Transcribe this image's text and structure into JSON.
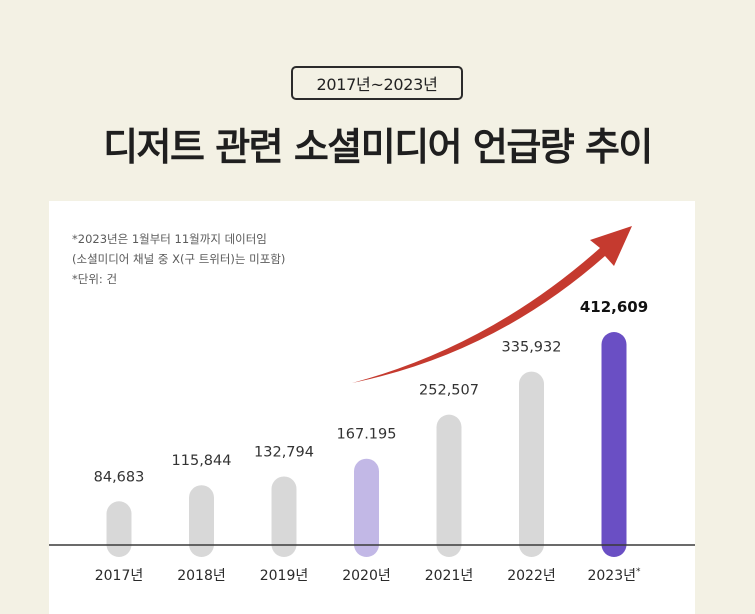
{
  "header": {
    "period": "2017년~2023년",
    "title": "디저트 관련 소셜미디어 언급량 추이"
  },
  "notes": {
    "line1": "*2023년은 1월부터 11월까지 데이터임",
    "line2": "(소셜미디어 채널 중 X(구 트위터)는 미포함)",
    "line3": "*단위: 건"
  },
  "colors": {
    "background": "#f3f1e4",
    "card": "#ffffff",
    "bar_default": "#d8d8d8",
    "bar_2020": "#c2b8e6",
    "bar_2023": "#6a4fc4",
    "arrow": "#c53a2f",
    "axis": "#3a3a3a"
  },
  "chart_data": {
    "type": "bar",
    "title": "디저트 관련 소셜미디어 언급량 추이",
    "xlabel": "",
    "ylabel": "",
    "unit": "건",
    "ylim": [
      0,
      450000
    ],
    "categories": [
      "2017년",
      "2018년",
      "2019년",
      "2020년",
      "2021년",
      "2022년",
      "2023년"
    ],
    "category_marks": [
      "",
      "",
      "",
      "",
      "",
      "",
      "*"
    ],
    "values": [
      84683,
      115844,
      132794,
      167195,
      252507,
      335932,
      412609
    ],
    "labels": [
      "84,683",
      "115,844",
      "132,794",
      "167.195",
      "252,507",
      "335,932",
      "412,609"
    ],
    "highlight": [
      false,
      false,
      false,
      true,
      false,
      false,
      true
    ],
    "annotation": "upward trend arrow from 2020 to 2023"
  }
}
